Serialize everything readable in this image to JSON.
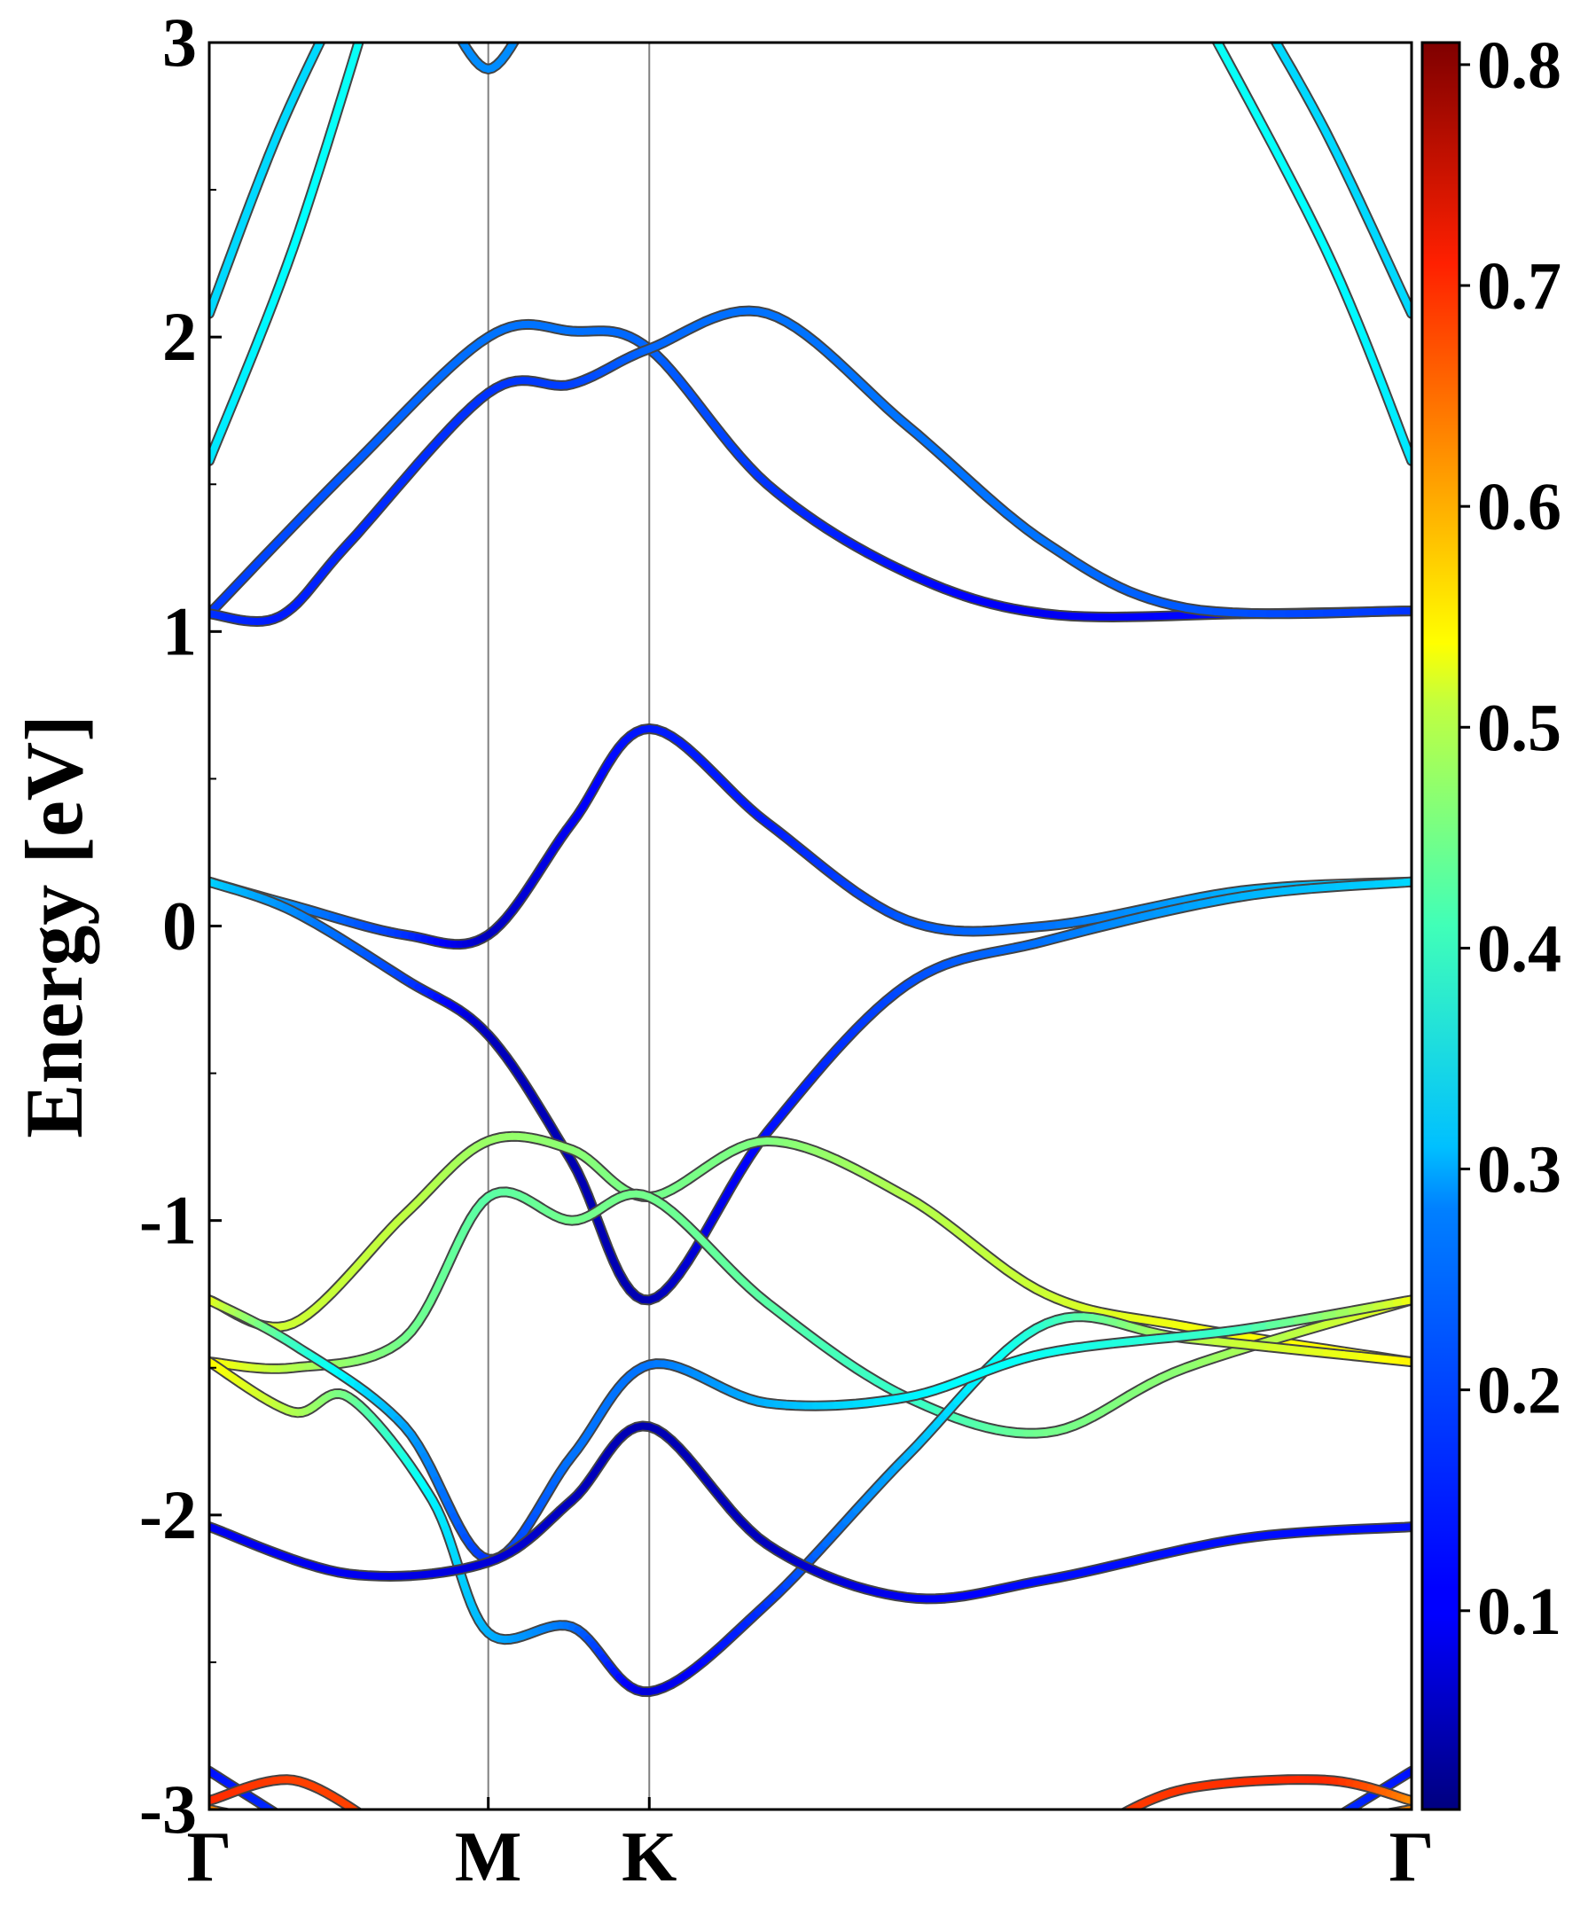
{
  "chart_data": {
    "type": "line",
    "title": "",
    "xlabel": "",
    "ylabel": "Energy [eV]",
    "ylim": [
      -3,
      3
    ],
    "x_tick_labels": [
      "Γ",
      "M",
      "K",
      "Γ"
    ],
    "x_tick_positions": [
      0,
      1,
      1.577,
      4.309
    ],
    "xlim": [
      0,
      4.309
    ],
    "y_ticks": [
      3,
      2,
      1,
      0,
      -1,
      -2,
      -3
    ],
    "y_tick_labels": [
      "3",
      "2",
      "1",
      "0",
      "-1",
      "-2",
      "-3"
    ],
    "y_minor_ticks": [
      2.5,
      1.5,
      0.5,
      -0.5,
      -1.5,
      -2.5
    ],
    "colorbar": {
      "colormap": "jet",
      "range": [
        0.01,
        0.81
      ],
      "ticks": [
        0.1,
        0.2,
        0.3,
        0.4,
        0.5,
        0.6,
        0.7,
        0.8
      ],
      "tick_labels": [
        "0.1",
        "0.2",
        "0.3",
        "0.4",
        "0.5",
        "0.6",
        "0.7",
        "0.8"
      ]
    },
    "grid": false,
    "legend": "none",
    "series": [
      {
        "values": [
          [
            0.0,
            2.08,
            0.28
          ],
          [
            0.25,
            2.7,
            0.28
          ],
          [
            0.5,
            3.2,
            0.28
          ]
        ]
      },
      {
        "values": [
          [
            0.0,
            1.58,
            0.29
          ],
          [
            0.3,
            2.3,
            0.31
          ],
          [
            0.6,
            3.2,
            0.32
          ]
        ]
      },
      {
        "values": [
          [
            0.8,
            3.2,
            0.22
          ],
          [
            1.0,
            2.91,
            0.22
          ],
          [
            1.2,
            3.2,
            0.22
          ]
        ]
      },
      {
        "values": [
          [
            4.309,
            2.08,
            0.28
          ],
          [
            4.0,
            2.7,
            0.28
          ],
          [
            3.7,
            3.2,
            0.28
          ]
        ]
      },
      {
        "values": [
          [
            4.309,
            1.58,
            0.29
          ],
          [
            4.0,
            2.3,
            0.31
          ],
          [
            3.5,
            3.2,
            0.32
          ]
        ]
      },
      {
        "values": [
          [
            0.0,
            1.06,
            0.15
          ],
          [
            0.5,
            1.55,
            0.18
          ],
          [
            1.0,
            2.0,
            0.2
          ],
          [
            1.3,
            2.02,
            0.2
          ],
          [
            1.577,
            1.96,
            0.19
          ],
          [
            2.0,
            1.5,
            0.15
          ],
          [
            2.5,
            1.2,
            0.12
          ],
          [
            3.0,
            1.06,
            0.1
          ],
          [
            3.7,
            1.06,
            0.12
          ],
          [
            4.309,
            1.07,
            0.15
          ]
        ]
      },
      {
        "values": [
          [
            0.0,
            1.06,
            0.15
          ],
          [
            0.25,
            1.05,
            0.13
          ],
          [
            0.5,
            1.3,
            0.14
          ],
          [
            1.0,
            1.81,
            0.15
          ],
          [
            1.3,
            1.84,
            0.16
          ],
          [
            1.577,
            1.96,
            0.19
          ],
          [
            2.0,
            2.08,
            0.2
          ],
          [
            2.5,
            1.7,
            0.2
          ],
          [
            3.0,
            1.3,
            0.2
          ],
          [
            3.5,
            1.08,
            0.18
          ],
          [
            4.309,
            1.07,
            0.15
          ]
        ]
      },
      {
        "values": [
          [
            0.0,
            0.15,
            0.28
          ],
          [
            0.3,
            0.07,
            0.22
          ],
          [
            0.7,
            -0.03,
            0.15
          ],
          [
            1.0,
            -0.03,
            0.06
          ],
          [
            1.3,
            0.35,
            0.1
          ],
          [
            1.577,
            0.67,
            0.13
          ],
          [
            2.0,
            0.35,
            0.13
          ],
          [
            2.5,
            0.02,
            0.18
          ],
          [
            3.0,
            0.0,
            0.2
          ],
          [
            3.7,
            0.12,
            0.25
          ],
          [
            4.309,
            0.15,
            0.28
          ]
        ]
      },
      {
        "values": [
          [
            0.0,
            0.15,
            0.28
          ],
          [
            0.3,
            0.05,
            0.22
          ],
          [
            0.7,
            -0.18,
            0.16
          ],
          [
            1.0,
            -0.37,
            0.06
          ],
          [
            1.3,
            -0.8,
            0.05
          ],
          [
            1.577,
            -1.27,
            0.05
          ],
          [
            2.0,
            -0.7,
            0.12
          ],
          [
            2.5,
            -0.2,
            0.17
          ],
          [
            3.0,
            -0.05,
            0.2
          ],
          [
            3.7,
            0.1,
            0.25
          ],
          [
            4.309,
            0.15,
            0.28
          ]
        ]
      },
      {
        "values": [
          [
            0.0,
            -1.27,
            0.5
          ],
          [
            0.3,
            -1.35,
            0.47
          ],
          [
            0.7,
            -0.98,
            0.46
          ],
          [
            1.0,
            -0.73,
            0.43
          ],
          [
            1.3,
            -0.76,
            0.42
          ],
          [
            1.577,
            -0.92,
            0.4
          ],
          [
            2.0,
            -0.73,
            0.41
          ],
          [
            2.5,
            -0.92,
            0.45
          ],
          [
            3.0,
            -1.25,
            0.47
          ],
          [
            3.5,
            -1.36,
            0.5
          ],
          [
            4.309,
            -1.48,
            0.52
          ]
        ]
      },
      {
        "values": [
          [
            0.0,
            -1.48,
            0.52
          ],
          [
            0.3,
            -1.5,
            0.45
          ],
          [
            0.7,
            -1.4,
            0.4
          ],
          [
            1.0,
            -0.92,
            0.38
          ],
          [
            1.3,
            -1.0,
            0.4
          ],
          [
            1.577,
            -0.92,
            0.4
          ],
          [
            2.0,
            -1.28,
            0.38
          ],
          [
            2.5,
            -1.6,
            0.35
          ],
          [
            3.0,
            -1.72,
            0.4
          ],
          [
            3.5,
            -1.5,
            0.42
          ],
          [
            4.309,
            -1.27,
            0.5
          ]
        ]
      },
      {
        "values": [
          [
            0.0,
            -1.48,
            0.52
          ],
          [
            0.3,
            -1.65,
            0.45
          ],
          [
            0.5,
            -1.6,
            0.4
          ],
          [
            0.8,
            -1.95,
            0.3
          ],
          [
            1.0,
            -2.4,
            0.25
          ],
          [
            1.3,
            -2.38,
            0.2
          ],
          [
            1.577,
            -2.6,
            0.08
          ],
          [
            2.0,
            -2.3,
            0.15
          ],
          [
            2.5,
            -1.8,
            0.25
          ],
          [
            3.0,
            -1.35,
            0.35
          ],
          [
            3.5,
            -1.4,
            0.45
          ],
          [
            4.309,
            -1.48,
            0.52
          ]
        ]
      },
      {
        "values": [
          [
            0.0,
            -1.27,
            0.5
          ],
          [
            0.3,
            -1.42,
            0.36
          ],
          [
            0.7,
            -1.7,
            0.24
          ],
          [
            1.0,
            -2.15,
            0.15
          ],
          [
            1.3,
            -1.8,
            0.2
          ],
          [
            1.577,
            -1.49,
            0.2
          ],
          [
            2.0,
            -1.62,
            0.25
          ],
          [
            2.5,
            -1.6,
            0.3
          ],
          [
            3.0,
            -1.45,
            0.32
          ],
          [
            3.7,
            -1.37,
            0.36
          ],
          [
            4.309,
            -1.27,
            0.5
          ]
        ]
      },
      {
        "values": [
          [
            0.0,
            -2.04,
            0.1
          ],
          [
            0.5,
            -2.2,
            0.1
          ],
          [
            1.0,
            -2.16,
            0.08
          ],
          [
            1.3,
            -1.95,
            0.06
          ],
          [
            1.577,
            -1.7,
            0.05
          ],
          [
            2.0,
            -2.1,
            0.06
          ],
          [
            2.5,
            -2.28,
            0.1
          ],
          [
            3.0,
            -2.22,
            0.12
          ],
          [
            3.7,
            -2.08,
            0.12
          ],
          [
            4.309,
            -2.04,
            0.12
          ]
        ]
      },
      {
        "values": [
          [
            0.0,
            -2.87,
            0.12
          ],
          [
            0.3,
            -3.05,
            0.15
          ]
        ]
      },
      {
        "values": [
          [
            0.0,
            -2.97,
            0.68
          ],
          [
            0.3,
            -2.9,
            0.66
          ],
          [
            0.6,
            -3.05,
            0.66
          ]
        ]
      },
      {
        "values": [
          [
            0.0,
            -3.0,
            0.6
          ],
          [
            0.25,
            -3.05,
            0.6
          ]
        ]
      },
      {
        "values": [
          [
            4.309,
            -2.87,
            0.12
          ],
          [
            4.0,
            -3.05,
            0.15
          ]
        ]
      },
      {
        "values": [
          [
            3.2,
            -3.05,
            0.66
          ],
          [
            3.5,
            -2.93,
            0.67
          ],
          [
            4.0,
            -2.9,
            0.68
          ],
          [
            4.309,
            -2.97,
            0.6
          ]
        ]
      },
      {
        "values": [
          [
            4.309,
            -3.0,
            0.6
          ],
          [
            4.0,
            -3.05,
            0.6
          ]
        ]
      }
    ]
  }
}
